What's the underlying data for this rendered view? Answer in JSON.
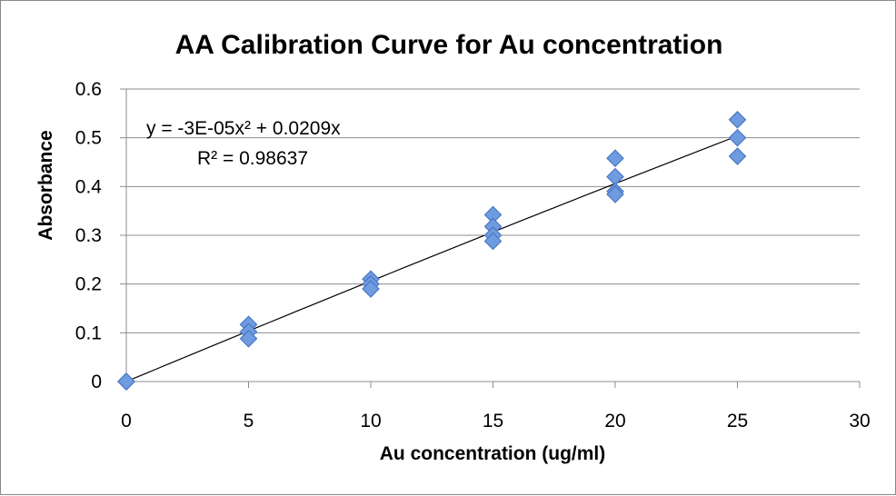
{
  "chart_data": {
    "type": "scatter",
    "title": "AA Calibration Curve for Au concentration",
    "xlabel": "Au concentration (ug/ml)",
    "ylabel": "Absorbance",
    "xlim": [
      0,
      30
    ],
    "ylim": [
      0,
      0.6
    ],
    "xticks": [
      "0",
      "5",
      "10",
      "15",
      "20",
      "25",
      "30"
    ],
    "yticks": [
      "0",
      "0.1",
      "0.2",
      "0.3",
      "0.4",
      "0.5",
      "0.6"
    ],
    "grid": "horizontal",
    "legend": "none",
    "marker": "diamond",
    "marker_color": "#6f9be0",
    "series": [
      {
        "points": [
          [
            0,
            0.0
          ],
          [
            0,
            0.0
          ],
          [
            0,
            0.0
          ],
          [
            5,
            0.117
          ],
          [
            5,
            0.102
          ],
          [
            5,
            0.088
          ],
          [
            10,
            0.21
          ],
          [
            10,
            0.2
          ],
          [
            10,
            0.19
          ],
          [
            15,
            0.342
          ],
          [
            15,
            0.318
          ],
          [
            15,
            0.3
          ],
          [
            15,
            0.288
          ],
          [
            20,
            0.458
          ],
          [
            20,
            0.42
          ],
          [
            20,
            0.39
          ],
          [
            20,
            0.384
          ],
          [
            25,
            0.537
          ],
          [
            25,
            0.5
          ],
          [
            25,
            0.462
          ]
        ]
      }
    ],
    "trendline": {
      "type": "polynomial",
      "coefficients": {
        "a": -3e-05,
        "b": 0.0209,
        "c": 0
      },
      "x_range": [
        0,
        25
      ],
      "equation_text": "y = -3E-05x² + 0.0209x",
      "r2_text": "R² = 0.98637",
      "color": "#000000"
    }
  }
}
